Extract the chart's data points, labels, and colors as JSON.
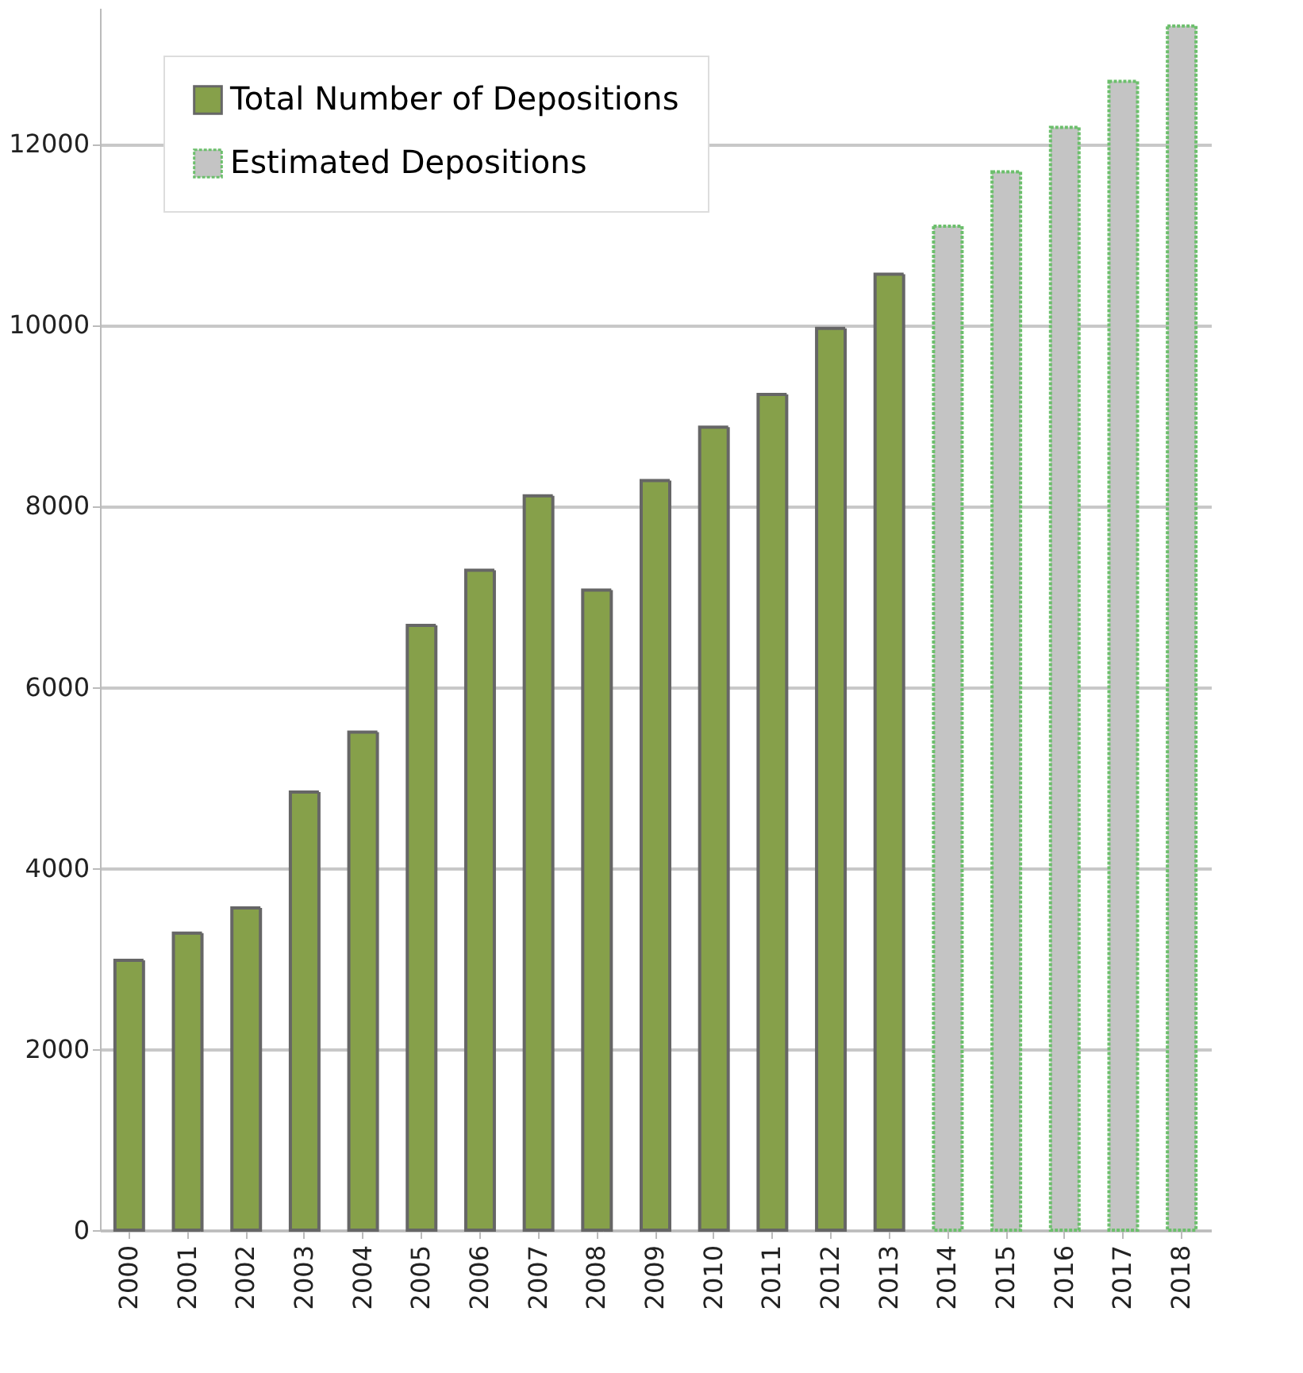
{
  "chart_data": {
    "type": "bar",
    "categories": [
      "2000",
      "2001",
      "2002",
      "2003",
      "2004",
      "2005",
      "2006",
      "2007",
      "2008",
      "2009",
      "2010",
      "2011",
      "2012",
      "2013",
      "2014",
      "2015",
      "2016",
      "2017",
      "2018"
    ],
    "series": [
      {
        "name": "Total Number of Depositions",
        "color": "#86a04a",
        "values": [
          2980,
          3280,
          3560,
          4840,
          5500,
          6680,
          7290,
          8110,
          7070,
          8280,
          8870,
          9230,
          9960,
          10560,
          null,
          null,
          null,
          null,
          null
        ]
      },
      {
        "name": "Estimated Depositions",
        "color": "#c4c4c4",
        "values": [
          null,
          null,
          null,
          null,
          null,
          null,
          null,
          null,
          null,
          null,
          null,
          null,
          null,
          null,
          11090,
          11690,
          12180,
          12690,
          13300
        ]
      }
    ],
    "ylim": [
      0,
      13500
    ],
    "yticks": [
      0,
      2000,
      4000,
      6000,
      8000,
      10000,
      12000
    ],
    "grid": "y",
    "legend": "top left"
  }
}
